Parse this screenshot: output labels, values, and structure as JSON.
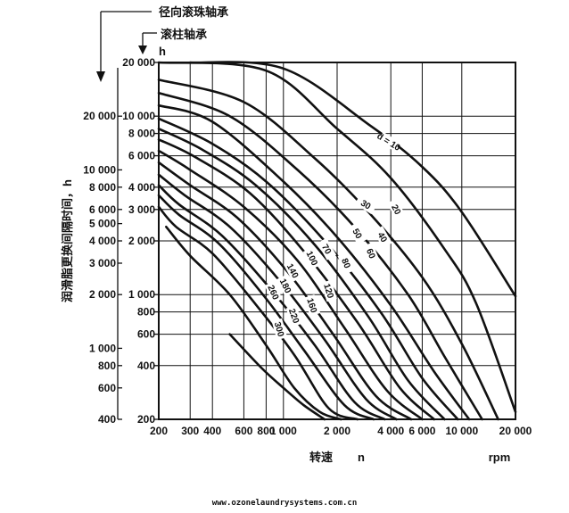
{
  "header": {
    "ball_bearing": "径向滚珠轴承",
    "roller_bearing": "滚柱轴承",
    "unit_h": "h"
  },
  "watermark": "www.ozonelaundrysystems.com.cn",
  "chart_data": {
    "type": "line",
    "title": "",
    "ylabel": "润滑脂更换间隔时间，h",
    "xlabel": "转速",
    "xlabel_symbol": "n",
    "xunit": "rpm",
    "xscale": "log",
    "yscale": "log",
    "xlim": [
      200,
      20000
    ],
    "ylim_roller": [
      200,
      20000
    ],
    "ylim_ball": [
      400,
      40000
    ],
    "x_ticks": [
      "200",
      "300",
      "400",
      "600",
      "800",
      "1 000",
      "2 000",
      "4 000",
      "6 000",
      "10 000",
      "20 000"
    ],
    "x_tick_values": [
      200,
      300,
      400,
      600,
      800,
      1000,
      2000,
      4000,
      6000,
      10000,
      20000
    ],
    "y_ticks_roller": [
      "200",
      "400",
      "600",
      "800",
      "1 000",
      "2 000",
      "3 000",
      "4 000",
      "6 000",
      "8 000",
      "10 000",
      "20 000"
    ],
    "y_tick_values_roller": [
      200,
      400,
      600,
      800,
      1000,
      2000,
      3000,
      4000,
      6000,
      8000,
      10000,
      20000
    ],
    "y_ticks_ball": [
      "400",
      "600",
      "800",
      "1 000",
      "2 000",
      "3 000",
      "4 000",
      "5 000",
      "6 000",
      "8 000",
      "10 000",
      "20 000"
    ],
    "y_tick_values_ball": [
      400,
      600,
      800,
      1000,
      2000,
      3000,
      4000,
      5000,
      6000,
      8000,
      10000,
      20000
    ],
    "grid": true,
    "series": [
      {
        "name": "d = 10",
        "x": [
          300,
          1000,
          3000,
          6000,
          10000,
          20000
        ],
        "y": [
          20000,
          18500,
          9000,
          5200,
          2900,
          980
        ]
      },
      {
        "name": "20",
        "x": [
          200,
          800,
          2000,
          4000,
          8000,
          12000,
          20000
        ],
        "y": [
          20000,
          18000,
          8500,
          4500,
          1800,
          900,
          220
        ]
      },
      {
        "name": "30",
        "x": [
          200,
          600,
          1500,
          3000,
          6000,
          10000,
          16000
        ],
        "y": [
          16000,
          12000,
          5800,
          2900,
          1250,
          530,
          200
        ]
      },
      {
        "name": "40",
        "x": [
          200,
          500,
          1200,
          2500,
          5000,
          8000,
          13000
        ],
        "y": [
          13500,
          10000,
          5000,
          2400,
          1000,
          450,
          200
        ]
      },
      {
        "name": "50",
        "x": [
          200,
          400,
          1000,
          2000,
          4000,
          7000,
          11000
        ],
        "y": [
          11500,
          9300,
          4300,
          2100,
          870,
          370,
          200
        ]
      },
      {
        "name": "60",
        "x": [
          200,
          400,
          800,
          1700,
          3500,
          6000,
          9500
        ],
        "y": [
          9700,
          7000,
          4300,
          2000,
          800,
          340,
          200
        ]
      },
      {
        "name": "70",
        "x": [
          200,
          350,
          700,
          1500,
          3000,
          5000,
          8000
        ],
        "y": [
          8500,
          6500,
          4100,
          1900,
          750,
          330,
          200
        ]
      },
      {
        "name": "80",
        "x": [
          200,
          320,
          650,
          1300,
          2600,
          4500,
          7000
        ],
        "y": [
          7400,
          5900,
          3700,
          1750,
          700,
          300,
          200
        ]
      },
      {
        "name": "100",
        "x": [
          200,
          300,
          600,
          1200,
          2200,
          3800,
          6000
        ],
        "y": [
          6400,
          5000,
          3100,
          1550,
          650,
          290,
          200
        ]
      },
      {
        "name": "120",
        "x": [
          200,
          300,
          550,
          1050,
          1900,
          3300,
          5200
        ],
        "y": [
          5500,
          4100,
          2700,
          1350,
          600,
          270,
          200
        ]
      },
      {
        "name": "140",
        "x": [
          200,
          280,
          500,
          950,
          1700,
          2900,
          4300
        ],
        "y": [
          4700,
          3600,
          2400,
          1200,
          560,
          260,
          200
        ]
      },
      {
        "name": "160",
        "x": [
          200,
          260,
          450,
          850,
          1500,
          2500,
          3700
        ],
        "y": [
          4100,
          3200,
          2150,
          1070,
          520,
          250,
          200
        ]
      },
      {
        "name": "180",
        "x": [
          200,
          260,
          430,
          780,
          1300,
          2200,
          3200
        ],
        "y": [
          3600,
          2800,
          1950,
          980,
          490,
          240,
          200
        ]
      },
      {
        "name": "220",
        "x": [
          200,
          250,
          400,
          700,
          1150,
          1800,
          2600
        ],
        "y": [
          3100,
          2400,
          1700,
          880,
          460,
          230,
          200
        ]
      },
      {
        "name": "260",
        "x": [
          220,
          300,
          500,
          800,
          1150,
          1600,
          2100
        ],
        "y": [
          2400,
          1650,
          1000,
          520,
          300,
          220,
          200
        ]
      },
      {
        "name": "300",
        "x": [
          500,
          750,
          1000,
          1300,
          1700
        ],
        "y": [
          600,
          390,
          300,
          240,
          200
        ]
      }
    ],
    "label_positions": [
      {
        "name": "d = 10",
        "x": 3900,
        "y": 7200,
        "rot": 32
      },
      {
        "name": "20",
        "x": 4300,
        "y": 3000,
        "rot": 62
      },
      {
        "name": "30",
        "x": 2900,
        "y": 3200,
        "rot": 32
      },
      {
        "name": "40",
        "x": 3600,
        "y": 2100,
        "rot": 60
      },
      {
        "name": "50",
        "x": 2600,
        "y": 2200,
        "rot": 60
      },
      {
        "name": "60",
        "x": 3100,
        "y": 1700,
        "rot": 68
      },
      {
        "name": "70",
        "x": 1750,
        "y": 1800,
        "rot": 60
      },
      {
        "name": "80",
        "x": 2250,
        "y": 1500,
        "rot": 68
      },
      {
        "name": "100",
        "x": 1450,
        "y": 1600,
        "rot": 64
      },
      {
        "name": "120",
        "x": 1800,
        "y": 1050,
        "rot": 72
      },
      {
        "name": "140",
        "x": 1130,
        "y": 1360,
        "rot": 62
      },
      {
        "name": "160",
        "x": 1450,
        "y": 870,
        "rot": 72
      },
      {
        "name": "180",
        "x": 1030,
        "y": 1120,
        "rot": 64
      },
      {
        "name": "220",
        "x": 1150,
        "y": 760,
        "rot": 70
      },
      {
        "name": "260",
        "x": 880,
        "y": 1030,
        "rot": 66
      },
      {
        "name": "300",
        "x": 950,
        "y": 640,
        "rot": 74
      }
    ]
  }
}
